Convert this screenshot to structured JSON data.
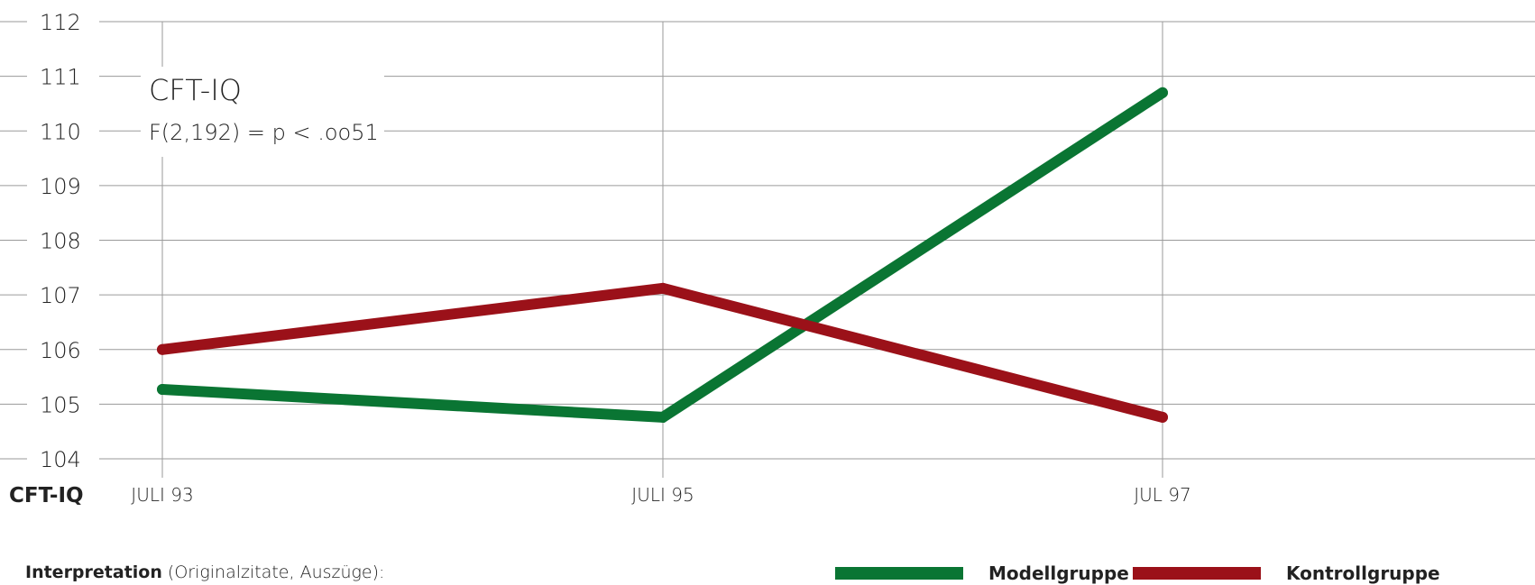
{
  "chart_data": {
    "type": "line",
    "title": "CFT-IQ",
    "subtitle": "F(2,192) = p < .oo51",
    "ylabel": "CFT-IQ",
    "xlabel": "",
    "categories": [
      "JULI 93",
      "JULI 95",
      "JUL 97"
    ],
    "yticks": [
      "104",
      "105",
      "106",
      "107",
      "108",
      "109",
      "110",
      "111",
      "112"
    ],
    "ylim": [
      104,
      112
    ],
    "grid": true,
    "legend_position": "bottom-right",
    "series": [
      {
        "name": "Modellgruppe",
        "color": "#0a7533",
        "values": [
          105.27,
          104.76,
          110.7
        ]
      },
      {
        "name": "Kontrollgruppe",
        "color": "#9b1119",
        "values": [
          106.0,
          107.12,
          104.76
        ]
      }
    ]
  },
  "footer": {
    "interpretation_label": "Interpretation",
    "interpretation_rest": " (Originalzitate, Auszüge):"
  }
}
